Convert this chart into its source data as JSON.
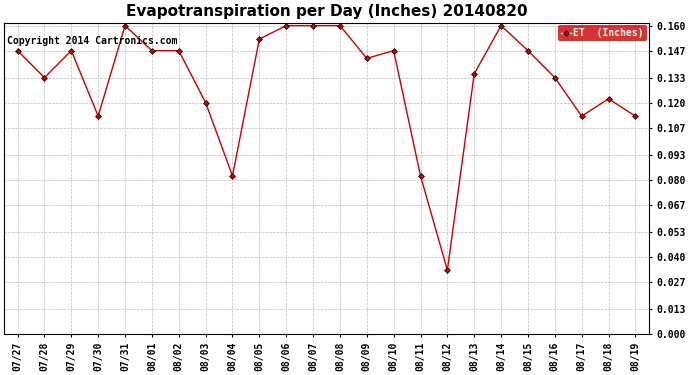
{
  "title": "Evapotranspiration per Day (Inches) 20140820",
  "copyright_text": "Copyright 2014 Cartronics.com",
  "legend_label": "ET  (Inches)",
  "x_labels": [
    "07/27",
    "07/28",
    "07/29",
    "07/30",
    "07/31",
    "08/01",
    "08/02",
    "08/03",
    "08/04",
    "08/05",
    "08/06",
    "08/07",
    "08/08",
    "08/09",
    "08/10",
    "08/11",
    "08/12",
    "08/13",
    "08/14",
    "08/15",
    "08/16",
    "08/17",
    "08/18",
    "08/19"
  ],
  "y_values": [
    0.147,
    0.133,
    0.147,
    0.113,
    0.16,
    0.147,
    0.147,
    0.12,
    0.082,
    0.153,
    0.16,
    0.16,
    0.16,
    0.143,
    0.147,
    0.082,
    0.033,
    0.135,
    0.16,
    0.147,
    0.133,
    0.113,
    0.122,
    0.113
  ],
  "ylim": [
    0.0,
    0.1613
  ],
  "yticks": [
    0.0,
    0.013,
    0.027,
    0.04,
    0.053,
    0.067,
    0.08,
    0.093,
    0.107,
    0.12,
    0.133,
    0.147,
    0.16
  ],
  "line_color": "#cc0000",
  "marker": "D",
  "marker_size": 3,
  "marker_color": "#000000",
  "marker_face_color": "#cc0000",
  "background_color": "#ffffff",
  "grid_color": "#bbbbbb",
  "legend_bg_color": "#cc0000",
  "legend_text_color": "#ffffff",
  "title_fontsize": 11,
  "tick_fontsize": 7,
  "copyright_fontsize": 7
}
